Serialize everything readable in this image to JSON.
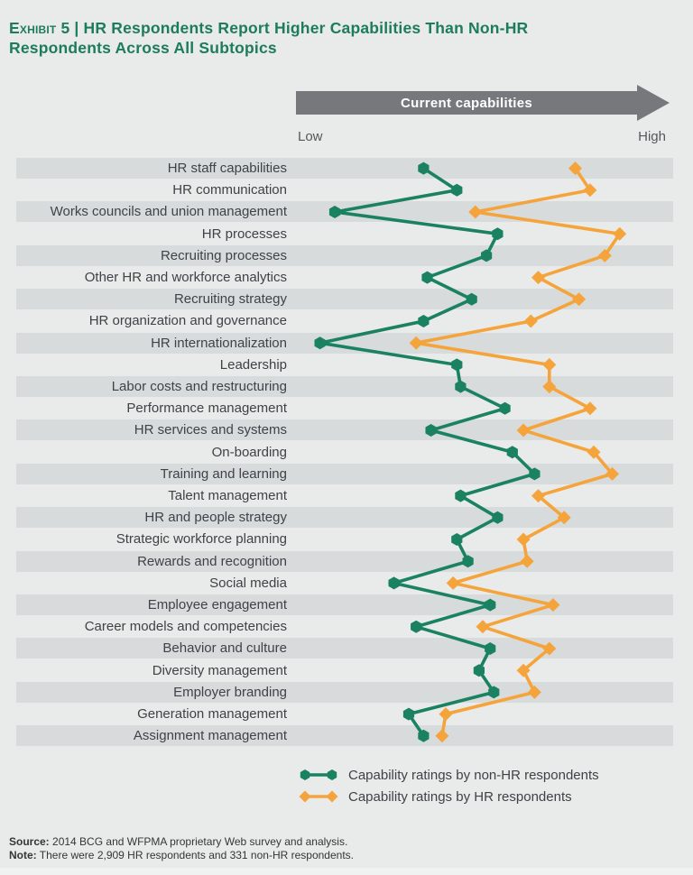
{
  "header": {
    "exhibit_label": "Exhibit 5",
    "separator": "|",
    "title": "HR Respondents Report Higher Capabilities Than Non-HR Respondents Across All Subtopics"
  },
  "axis": {
    "arrow_label": "Current capabilities",
    "low": "Low",
    "high": "High"
  },
  "footer": {
    "source_label": "Source:",
    "source_text": " 2014 BCG and WFPMA proprietary Web survey and analysis.",
    "note_label": "Note:",
    "note_text": " There were 2,909 HR respondents and 331 non-HR respondents."
  },
  "colors": {
    "title_green": "#1d7c5b",
    "arrow_gray": "#77787b",
    "band_gray": "#d7dbdc",
    "background": "#e9eaea",
    "non_hr_green": "#1a8161",
    "hr_orange": "#f5a43c"
  },
  "chart_data": {
    "type": "line",
    "subtype": "horizontal-dot-line-comparison",
    "title": "HR Respondents Report Higher Capabilities Than Non-HR Respondents Across All Subtopics",
    "xlabel": "Current capabilities",
    "x_axis": {
      "min_label": "Low",
      "max_label": "High",
      "range": [
        0,
        100
      ],
      "ticks_visible": false
    },
    "grid": "alternating-row-bands",
    "legend_position": "bottom",
    "categories": [
      "HR staff capabilities",
      "HR communication",
      "Works councils and union management",
      "HR processes",
      "Recruiting processes",
      "Other HR and workforce analytics",
      "Recruiting strategy",
      "HR organization and governance",
      "HR internationalization",
      "Leadership",
      "Labor costs and restructuring",
      "Performance management",
      "HR services and systems",
      "On-boarding",
      "Training and learning",
      "Talent management",
      "HR and people strategy",
      "Strategic workforce planning",
      "Rewards and recognition",
      "Social media",
      "Employee engagement",
      "Career models and competencies",
      "Behavior and culture",
      "Diversity management",
      "Employer branding",
      "Generation management",
      "Assignment management"
    ],
    "series": [
      {
        "id": "non-hr",
        "name": "Capability ratings by non-HR respondents",
        "marker": "hexagon",
        "color": "#1a8161",
        "values": [
          34,
          43,
          10,
          54,
          51,
          35,
          47,
          34,
          6,
          43,
          44,
          56,
          36,
          58,
          64,
          44,
          54,
          43,
          46,
          26,
          52,
          32,
          52,
          49,
          53,
          30,
          34
        ]
      },
      {
        "id": "hr",
        "name": "Capability ratings by HR respondents",
        "marker": "diamond",
        "color": "#f5a43c",
        "values": [
          75,
          79,
          48,
          87,
          83,
          65,
          76,
          63,
          32,
          68,
          68,
          79,
          61,
          80,
          85,
          65,
          72,
          61,
          62,
          42,
          69,
          50,
          68,
          61,
          64,
          40,
          39
        ]
      }
    ]
  }
}
